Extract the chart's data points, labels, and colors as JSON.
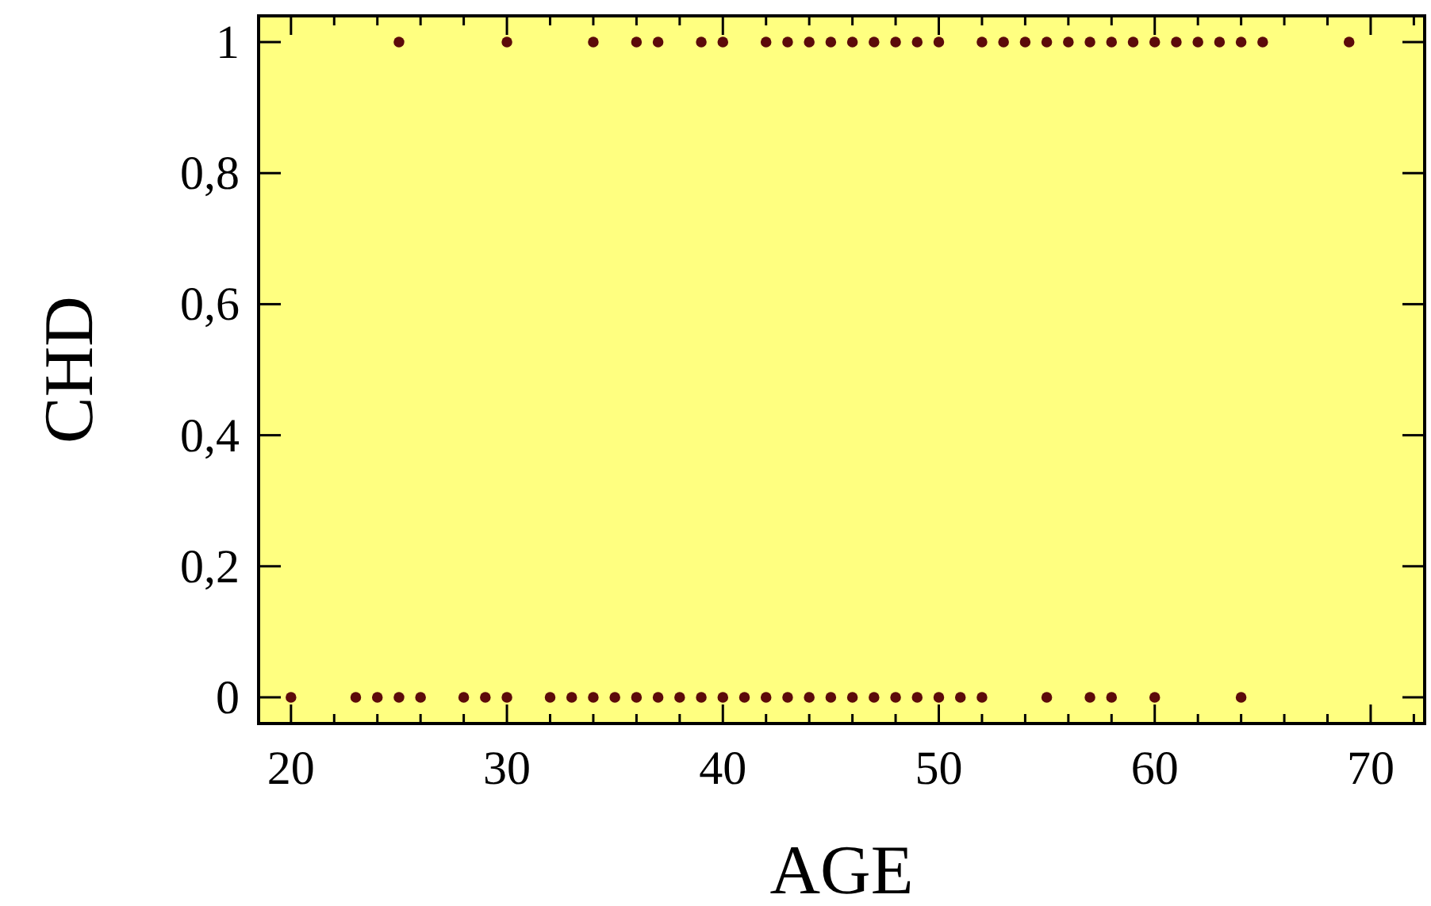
{
  "chart_data": {
    "type": "scatter",
    "xlabel": "AGE",
    "ylabel": "CHD",
    "xlim": [
      18.5,
      72.5
    ],
    "ylim": [
      -0.04,
      1.04
    ],
    "xticks": [
      20,
      {
        "value": 22,
        "label": null
      },
      {
        "value": 24,
        "label": null
      },
      {
        "value": 26,
        "label": null
      },
      {
        "value": 28,
        "label": null
      },
      30,
      {
        "value": 32,
        "label": null
      },
      {
        "value": 34,
        "label": null
      },
      {
        "value": 36,
        "label": null
      },
      {
        "value": 38,
        "label": null
      },
      40,
      {
        "value": 42,
        "label": null
      },
      {
        "value": 44,
        "label": null
      },
      {
        "value": 46,
        "label": null
      },
      {
        "value": 48,
        "label": null
      },
      50,
      {
        "value": 52,
        "label": null
      },
      {
        "value": 54,
        "label": null
      },
      {
        "value": 56,
        "label": null
      },
      {
        "value": 58,
        "label": null
      },
      60,
      {
        "value": 62,
        "label": null
      },
      {
        "value": 64,
        "label": null
      },
      {
        "value": 66,
        "label": null
      },
      {
        "value": 68,
        "label": null
      },
      70,
      {
        "value": 72,
        "label": null
      }
    ],
    "yticks": [
      0,
      {
        "value": 0.2,
        "label": "0,2"
      },
      {
        "value": 0.4,
        "label": "0,4"
      },
      {
        "value": 0.6,
        "label": "0,6"
      },
      {
        "value": 0.8,
        "label": "0,8"
      },
      1
    ],
    "grid": false,
    "marker": "circle",
    "series": [
      {
        "color": "#5c0a0a",
        "x": [
          25,
          30,
          34,
          36,
          37,
          39,
          40,
          42,
          43,
          44,
          45,
          46,
          47,
          48,
          49,
          50,
          52,
          53,
          54,
          55,
          56,
          57,
          58,
          59,
          60,
          61,
          62,
          63,
          64,
          65,
          69
        ],
        "values": [
          1,
          1,
          1,
          1,
          1,
          1,
          1,
          1,
          1,
          1,
          1,
          1,
          1,
          1,
          1,
          1,
          1,
          1,
          1,
          1,
          1,
          1,
          1,
          1,
          1,
          1,
          1,
          1,
          1,
          1,
          1
        ]
      },
      {
        "color": "#5c0a0a",
        "x": [
          20,
          23,
          24,
          25,
          26,
          28,
          29,
          30,
          32,
          33,
          34,
          35,
          36,
          37,
          38,
          39,
          40,
          41,
          42,
          43,
          44,
          45,
          46,
          47,
          48,
          49,
          50,
          51,
          52,
          55,
          57,
          58,
          60,
          64
        ],
        "values": [
          0,
          0,
          0,
          0,
          0,
          0,
          0,
          0,
          0,
          0,
          0,
          0,
          0,
          0,
          0,
          0,
          0,
          0,
          0,
          0,
          0,
          0,
          0,
          0,
          0,
          0,
          0,
          0,
          0,
          0,
          0,
          0,
          0,
          0
        ]
      }
    ]
  }
}
